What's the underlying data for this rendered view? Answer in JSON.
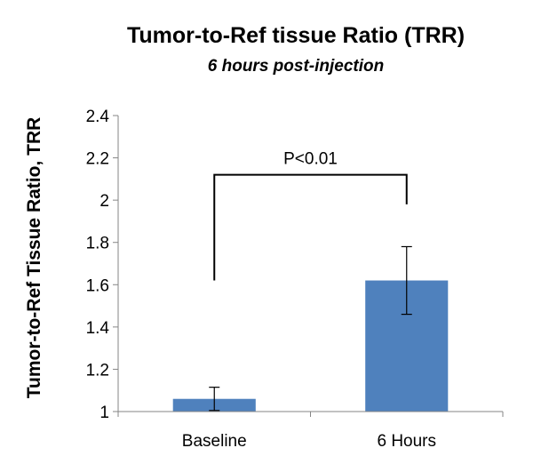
{
  "chart_data": {
    "type": "bar",
    "title": "Tumor-to-Ref tissue Ratio (TRR)",
    "subtitle": "6 hours post-injection",
    "xlabel": "",
    "ylabel": "Tumor-to-Ref Tissue Ratio, TRR",
    "categories": [
      "Baseline",
      "6 Hours"
    ],
    "values": [
      1.06,
      1.62
    ],
    "error": [
      0.055,
      0.16
    ],
    "ylim": [
      1,
      2.4
    ],
    "yticks": [
      1,
      1.2,
      1.4,
      1.6,
      1.8,
      2,
      2.2,
      2.4
    ],
    "ytick_labels": [
      "1",
      "1.2",
      "1.4",
      "1.6",
      "1.8",
      "2",
      "2.2",
      "2.4"
    ],
    "grid": false,
    "bar_color": "#4F81BD",
    "significance": {
      "label": "P<0.01",
      "between": [
        0,
        1
      ],
      "level": 2.12,
      "left_drop_to": 1.62,
      "right_drop_to": 1.98
    }
  }
}
